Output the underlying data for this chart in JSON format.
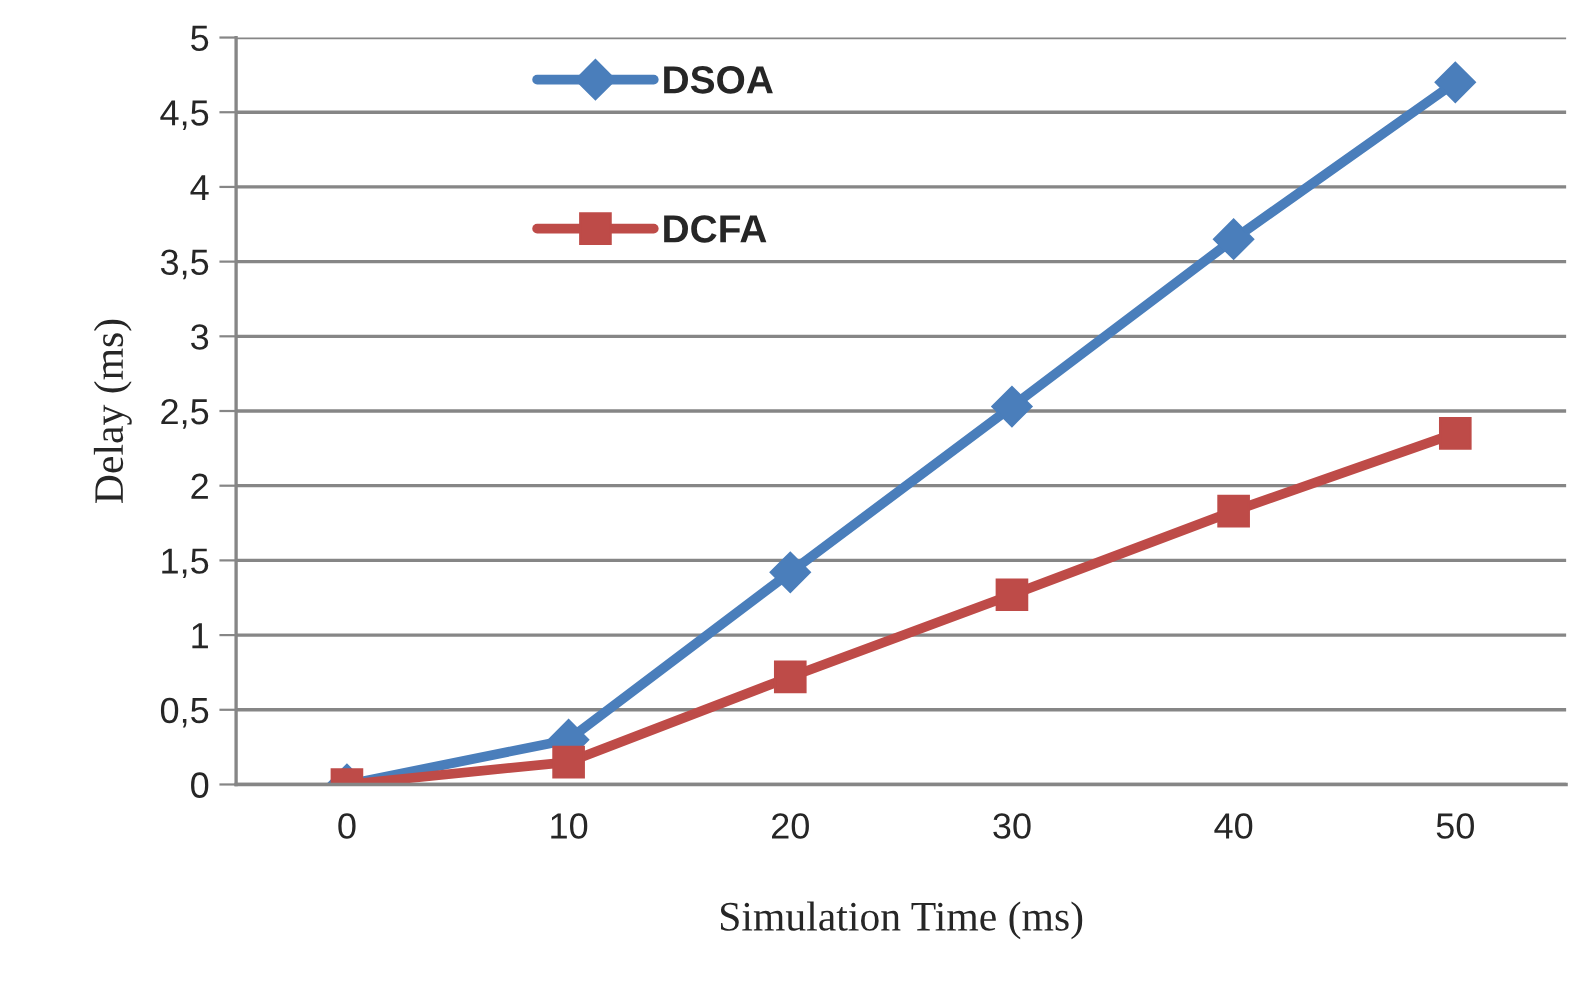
{
  "chart_data": {
    "type": "line",
    "xlabel": "Simulation Time (ms)",
    "ylabel": "Delay (ms)",
    "categories": [
      "0",
      "10",
      "20",
      "30",
      "40",
      "50"
    ],
    "series": [
      {
        "name": "DSOA",
        "color": "#4a7ebb",
        "marker": "diamond",
        "values": [
          0,
          0.3,
          1.42,
          2.53,
          3.65,
          4.7
        ]
      },
      {
        "name": "DCFA",
        "color": "#be4b48",
        "marker": "square",
        "values": [
          0,
          0.15,
          0.72,
          1.27,
          1.83,
          2.35
        ]
      }
    ],
    "ylim": [
      0,
      5
    ],
    "yticks": [
      0,
      {
        "value": 0.5,
        "label": "0,5"
      },
      1,
      {
        "value": 1.5,
        "label": "1,5"
      },
      2,
      {
        "value": 2.5,
        "label": "2,5"
      },
      3,
      {
        "value": 3.5,
        "label": "3,5"
      },
      4,
      {
        "value": 4.5,
        "label": "4,5"
      },
      5
    ],
    "grid": "y",
    "legend": "top left",
    "line_style": "solid"
  }
}
